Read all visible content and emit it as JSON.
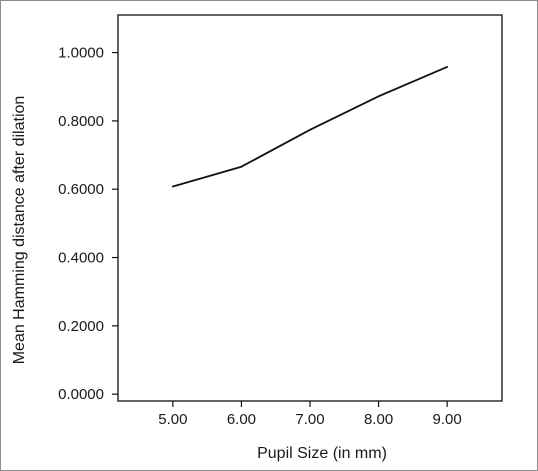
{
  "chart_data": {
    "type": "line",
    "title": "",
    "xlabel": "Pupil Size (in mm)",
    "ylabel": "Mean Hamming distance after dilation",
    "x_tick_labels": [
      "5.00",
      "6.00",
      "7.00",
      "8.00",
      "9.00"
    ],
    "y_tick_labels": [
      "0.0000",
      "0.2000",
      "0.4000",
      "0.6000",
      "0.8000",
      "1.0000"
    ],
    "x": [
      5.0,
      6.0,
      7.0,
      8.0,
      9.0
    ],
    "series": [
      {
        "values": [
          0.608,
          0.666,
          0.774,
          0.872,
          0.958
        ]
      }
    ],
    "xlim": [
      4.2,
      9.8
    ],
    "ylim": [
      -0.02,
      1.11
    ],
    "grid": false,
    "legend": "none",
    "line_color": "#111111"
  }
}
